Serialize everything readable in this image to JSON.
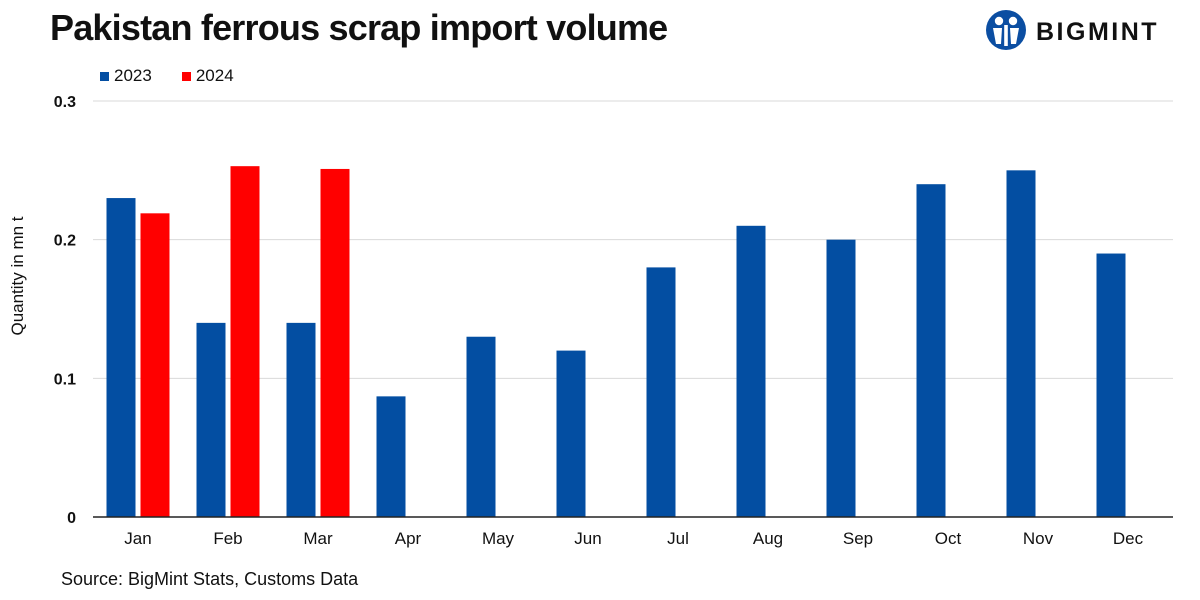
{
  "title": "Pakistan ferrous scrap import volume",
  "logo": {
    "text": "BIGMINT",
    "color": "#0B4EA2"
  },
  "source": "Source: BigMint Stats, Customs Data",
  "chart_data": {
    "type": "bar",
    "title": "Pakistan ferrous scrap import volume",
    "xlabel": "",
    "ylabel": "Quantity in mn t",
    "ylim": [
      0,
      0.3
    ],
    "yticks": [
      0,
      0.1,
      0.2,
      0.3
    ],
    "ytick_labels": [
      "0",
      "0.1",
      "0.2",
      "0.3"
    ],
    "grid": true,
    "legend_position": "top-left",
    "categories": [
      "Jan",
      "Feb",
      "Mar",
      "Apr",
      "May",
      "Jun",
      "Jul",
      "Aug",
      "Sep",
      "Oct",
      "Nov",
      "Dec"
    ],
    "series": [
      {
        "name": "2023",
        "color": "#034EA2",
        "values": [
          0.23,
          0.14,
          0.14,
          0.087,
          0.13,
          0.12,
          0.18,
          0.21,
          0.2,
          0.24,
          0.25,
          0.19
        ]
      },
      {
        "name": "2024",
        "color": "#FF0000",
        "values": [
          0.219,
          0.253,
          0.251,
          null,
          null,
          null,
          null,
          null,
          null,
          null,
          null,
          null
        ]
      }
    ]
  }
}
